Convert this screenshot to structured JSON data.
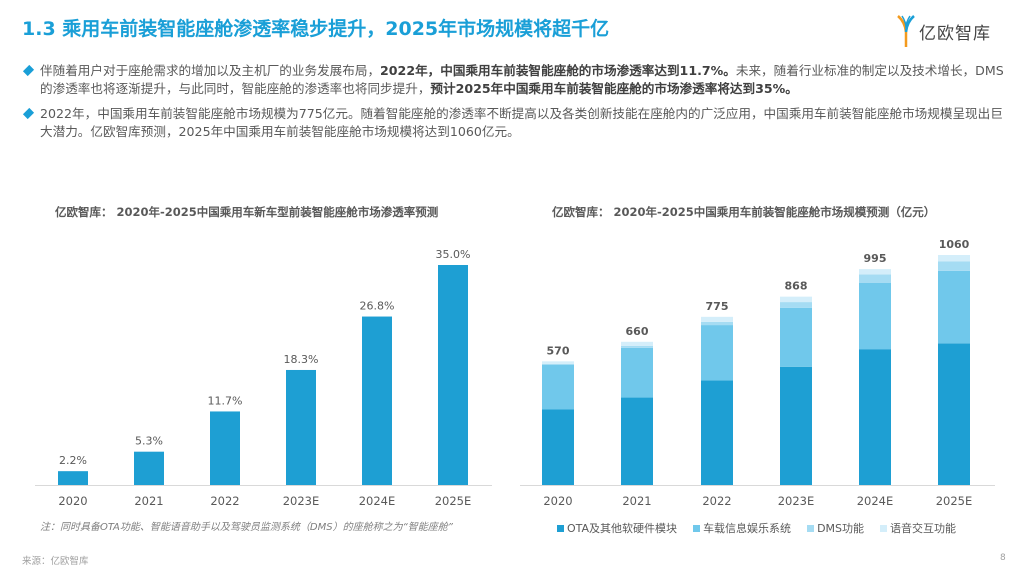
{
  "header": {
    "title": "1.3 乘用车前装智能座舱渗透率稳步提升，2025年市场规模将超千亿",
    "logo_text": "亿欧智库"
  },
  "bullets": [
    {
      "parts": [
        {
          "t": "伴随着用户对于座舱需求的增加以及主机厂的业务发展布局，",
          "b": false
        },
        {
          "t": "2022年，中国乘用车前装智能座舱的市场渗透率达到11.7%。",
          "b": true
        },
        {
          "t": "未来，随着行业标准的制定以及技术增长，DMS的渗透率也将逐渐提升，与此同时，智能座舱的渗透率也将同步提升，",
          "b": false
        },
        {
          "t": "预计2025年中国乘用车前装智能座舱的市场渗透率将达到35%。",
          "b": true
        }
      ]
    },
    {
      "parts": [
        {
          "t": "2022年，中国乘用车前装智能座舱市场规模为775亿元。随着智能座舱的渗透率不断提高以及各类创新技能在座舱内的广泛应用，中国乘用车前装智能座舱市场规模呈现出巨大潜力。亿欧智库预测，2025年中国乘用车前装智能座舱市场规模将达到1060亿元。",
          "b": false
        }
      ]
    }
  ],
  "note": "注：同时具备OTA功能、智能语音助手以及驾驶员监测系统（DMS）的座舱称之为“智能座舱”",
  "source": "来源：亿欧智库",
  "page_number": "8",
  "chart_data": [
    {
      "type": "bar",
      "title": "亿欧智库：  2020年-2025中国乘用车新车型前装智能座舱市场渗透率预测",
      "categories": [
        "2020",
        "2021",
        "2022",
        "2023E",
        "2024E",
        "2025E"
      ],
      "values": [
        2.2,
        5.3,
        11.7,
        18.3,
        26.8,
        35.0
      ],
      "labels": [
        "2.2%",
        "5.3%",
        "11.7%",
        "18.3%",
        "26.8%",
        "35.0%"
      ],
      "ylim": [
        0,
        35
      ],
      "grid": false,
      "color": "#1e9fd3"
    },
    {
      "type": "bar",
      "stacked": true,
      "title": "亿欧智库：  2020年-2025中国乘用车前装智能座舱市场规模预测（亿元）",
      "categories": [
        "2020",
        "2021",
        "2022",
        "2023E",
        "2024E",
        "2025E"
      ],
      "totals": [
        570,
        660,
        775,
        868,
        995,
        1060
      ],
      "series": [
        {
          "name": "OTA及其他软硬件模块",
          "color": "#1e9fd3",
          "values": [
            348,
            403,
            482,
            545,
            626,
            653
          ]
        },
        {
          "name": "车载信息娱乐系统",
          "color": "#70c8eb",
          "values": [
            205,
            229,
            255,
            271,
            305,
            334
          ]
        },
        {
          "name": "DMS功能",
          "color": "#a5dcf3",
          "values": [
            5,
            9,
            15,
            27,
            39,
            43
          ]
        },
        {
          "name": "语音交互功能",
          "color": "#d4eefa",
          "values": [
            12,
            19,
            23,
            25,
            25,
            30
          ]
        }
      ],
      "ylim": [
        0,
        1060
      ],
      "grid": false,
      "legend": "bottom"
    }
  ]
}
